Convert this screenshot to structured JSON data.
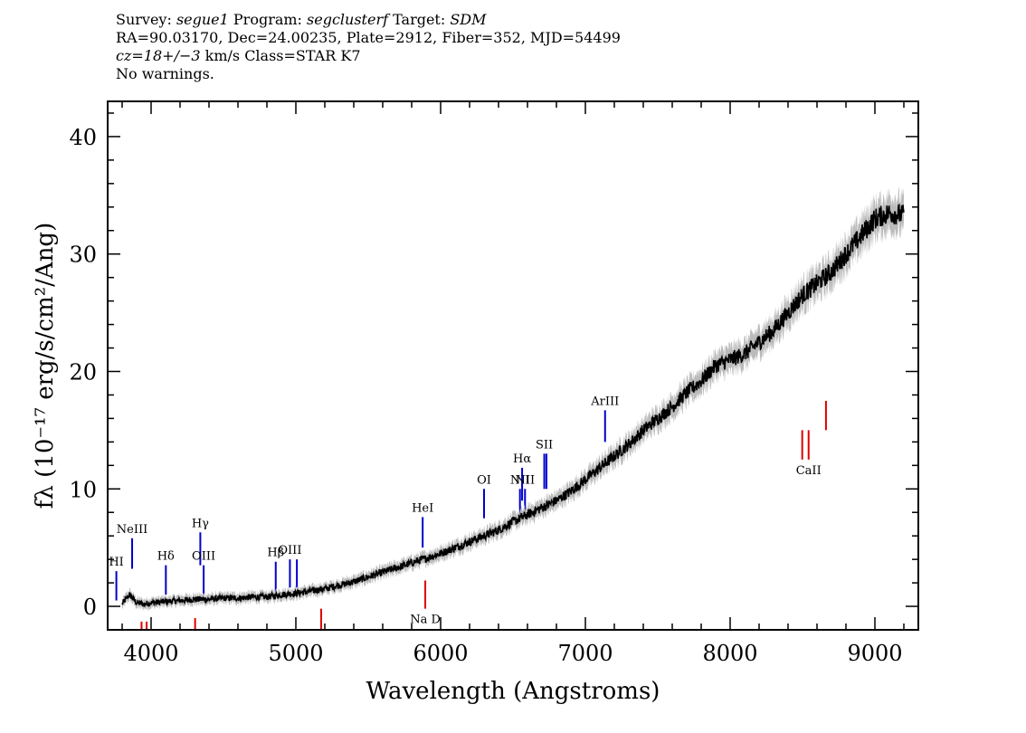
{
  "header": {
    "line1": {
      "survey_label": "Survey: ",
      "survey": "segue1",
      "program_label": " Program: ",
      "program": "segclusterf",
      "target_label": " Target: ",
      "target": "SDM"
    },
    "line2": "RA=90.03170, Dec=24.00235, Plate=2912, Fiber=352, MJD=54499",
    "line3": {
      "cz": "cz=18+/−3",
      "rest": " km/s Class=STAR K7"
    },
    "line4": "No warnings."
  },
  "chart_data": {
    "type": "line",
    "xlabel": "Wavelength (Angstroms)",
    "ylabel": "fλ (10⁻¹⁷ erg/s/cm²/Ang)",
    "xlim": [
      3700,
      9300
    ],
    "ylim": [
      -2,
      43
    ],
    "x_ticks": [
      4000,
      5000,
      6000,
      7000,
      8000,
      9000
    ],
    "y_ticks": [
      0,
      10,
      20,
      30,
      40
    ],
    "grid": false,
    "series": [
      {
        "color": "#000000",
        "x": [
          3800,
          3850,
          3900,
          3950,
          4000,
          4100,
          4200,
          4300,
          4400,
          4500,
          4600,
          4700,
          4800,
          4900,
          5000,
          5100,
          5200,
          5300,
          5400,
          5500,
          5600,
          5700,
          5800,
          5900,
          6000,
          6100,
          6200,
          6300,
          6400,
          6500,
          6600,
          6700,
          6800,
          6900,
          7000,
          7100,
          7200,
          7300,
          7400,
          7500,
          7600,
          7700,
          7800,
          7900,
          8000,
          8100,
          8200,
          8300,
          8400,
          8500,
          8600,
          8700,
          8800,
          8900,
          9000,
          9100,
          9200
        ],
        "y": [
          0.2,
          1.0,
          0.3,
          0.2,
          0.3,
          0.4,
          0.5,
          0.6,
          0.6,
          0.7,
          0.7,
          0.8,
          0.8,
          1.0,
          1.1,
          1.3,
          1.5,
          1.8,
          2.1,
          2.5,
          2.9,
          3.3,
          3.7,
          4.1,
          4.5,
          5.0,
          5.5,
          6.0,
          6.5,
          7.2,
          7.8,
          8.4,
          9.0,
          9.8,
          10.8,
          11.8,
          12.8,
          13.8,
          15.0,
          16.0,
          17.0,
          18.2,
          19.2,
          20.5,
          21.0,
          21.5,
          22.5,
          23.5,
          25.0,
          26.5,
          27.5,
          28.5,
          30.0,
          31.5,
          33.0,
          33.5,
          33.3
        ]
      }
    ],
    "spectral_lines": {
      "emission_color": "#0000cc",
      "absorption_color": "#dd0000",
      "emission": [
        {
          "name": "HI",
          "wavelength": 3760,
          "y_top": 3.0,
          "y_bottom": 0.5
        },
        {
          "name": "NeIII",
          "wavelength": 3869,
          "y_top": 5.8,
          "y_bottom": 3.2
        },
        {
          "name": "Hδ",
          "wavelength": 4102,
          "y_top": 3.5,
          "y_bottom": 1.0
        },
        {
          "name": "Hγ",
          "wavelength": 4340,
          "y_top": 6.3,
          "y_bottom": 3.5
        },
        {
          "name": "OIII",
          "wavelength": 4363,
          "y_top": 3.5,
          "y_bottom": 1.0
        },
        {
          "name": "Hβ",
          "wavelength": 4861,
          "y_top": 3.8,
          "y_bottom": 1.2
        },
        {
          "name": "OIII",
          "wavelength": 4959,
          "y_top": 4.0,
          "y_bottom": 1.6
        },
        {
          "name": "",
          "wavelength": 5007,
          "y_top": 4.0,
          "y_bottom": 1.6
        },
        {
          "name": "HeI",
          "wavelength": 5876,
          "y_top": 7.6,
          "y_bottom": 5.0
        },
        {
          "name": "OI",
          "wavelength": 6300,
          "y_top": 10.0,
          "y_bottom": 7.5
        },
        {
          "name": "NII",
          "wavelength": 6548,
          "y_top": 10.0,
          "y_bottom": 7.5
        },
        {
          "name": "Hα",
          "wavelength": 6563,
          "y_top": 11.8,
          "y_bottom": 9.0
        },
        {
          "name": "NII",
          "wavelength": 6583,
          "y_top": 10.0,
          "y_bottom": 7.5
        },
        {
          "name": "SII",
          "wavelength": 6716,
          "y_top": 13.0,
          "y_bottom": 10.0
        },
        {
          "name": "",
          "wavelength": 6731,
          "y_top": 13.0,
          "y_bottom": 10.0
        },
        {
          "name": "ArIII",
          "wavelength": 7136,
          "y_top": 16.7,
          "y_bottom": 14.0
        }
      ],
      "absorption": [
        {
          "name": "",
          "wavelength": 3934,
          "y_top": -1.3,
          "y_bottom": -2.0
        },
        {
          "name": "",
          "wavelength": 3969,
          "y_top": -1.3,
          "y_bottom": -2.0
        },
        {
          "name": "",
          "wavelength": 4304,
          "y_top": -1.0,
          "y_bottom": -2.0
        },
        {
          "name": "",
          "wavelength": 5175,
          "y_top": -0.2,
          "y_bottom": -2.0
        },
        {
          "name": "Na D",
          "wavelength": 5894,
          "y_top": 2.2,
          "y_bottom": -0.2
        },
        {
          "name": "",
          "wavelength": 8498,
          "y_top": 15.0,
          "y_bottom": 12.5
        },
        {
          "name": "CaII",
          "wavelength": 8542,
          "y_top": 15.0,
          "y_bottom": 12.5
        },
        {
          "name": "",
          "wavelength": 8662,
          "y_top": 17.5,
          "y_bottom": 15.0
        }
      ]
    }
  }
}
